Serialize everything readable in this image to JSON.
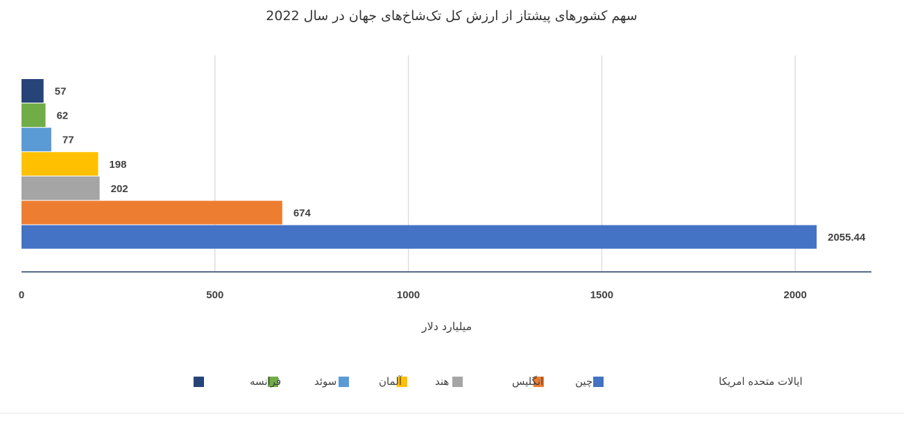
{
  "chart_data": {
    "type": "bar",
    "orientation": "horizontal",
    "title": "سهم کشورهای پیشتاز از ارزش کل تک‌شاخ‌های جهان در سال 2022",
    "xlabel": "میلیارد دلار",
    "ylabel": "",
    "xlim": [
      0,
      2200
    ],
    "xticks": [
      "0",
      "500",
      "1000",
      "1500",
      "2000"
    ],
    "xtick_values": [
      0,
      500,
      1000,
      1500,
      2000
    ],
    "grid": true,
    "legend_position": "bottom",
    "series": [
      {
        "name": "ایالات متحده امریکا",
        "value": 2055.44,
        "label": "2055.44",
        "color": "#4472C4"
      },
      {
        "name": "چین",
        "value": 674,
        "label": "674",
        "color": "#ED7D31"
      },
      {
        "name": "انگلیس",
        "value": 202,
        "label": "202",
        "color": "#A5A5A5"
      },
      {
        "name": "هند",
        "value": 198,
        "label": "198",
        "color": "#FFC000"
      },
      {
        "name": "آلمان",
        "value": 77,
        "label": "77",
        "color": "#5B9BD5"
      },
      {
        "name": "سوئد",
        "value": 62,
        "label": "62",
        "color": "#70AD47"
      },
      {
        "name": "فرانسه",
        "value": 57,
        "label": "57",
        "color": "#264478"
      }
    ]
  }
}
